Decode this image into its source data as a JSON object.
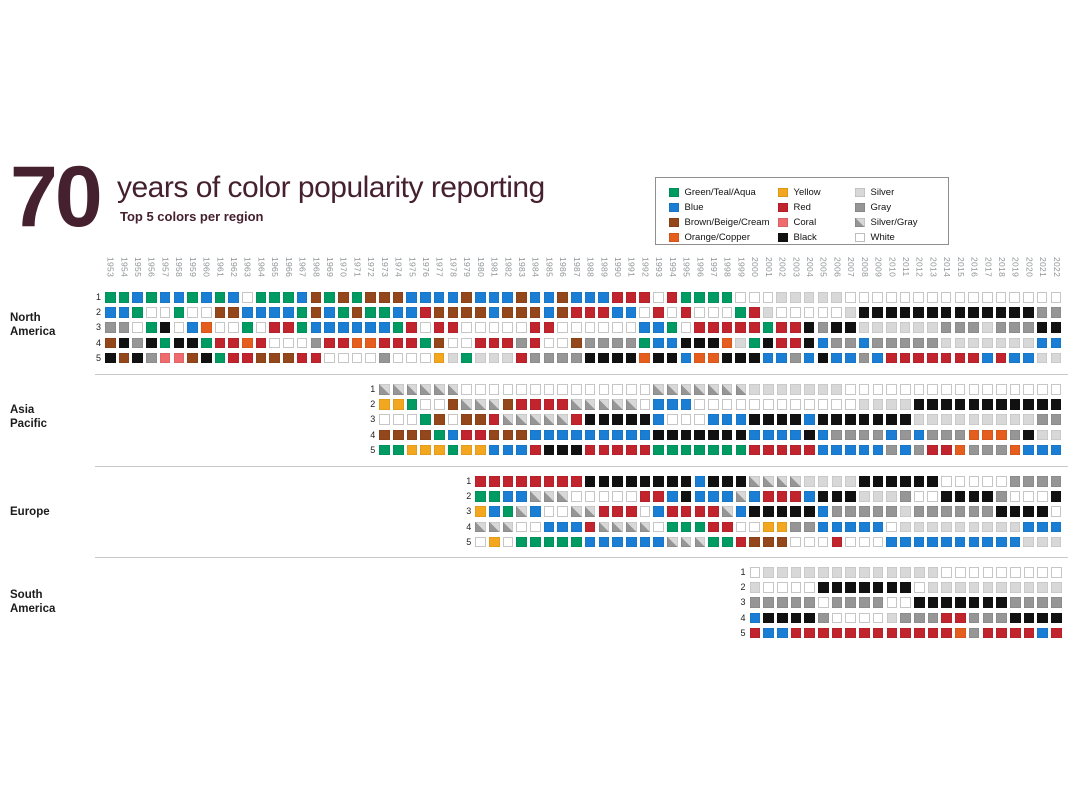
{
  "header": {
    "number": "70",
    "title": "years of color popularity reporting",
    "subtitle": "Top 5 colors per region"
  },
  "colors": {
    "title_text": "#45202f",
    "year_label": "#8e9396",
    "region_label": "#1b1b1b",
    "separator": "#c9c9c9"
  },
  "chart_data": {
    "type": "heatmap",
    "title": "70 years of color popularity reporting",
    "subtitle": "Top 5 colors per region",
    "x_axis": {
      "label": "year",
      "start": 1953,
      "end": 2022
    },
    "years": [
      1953,
      1954,
      1955,
      1956,
      1957,
      1958,
      1959,
      1960,
      1961,
      1962,
      1963,
      1964,
      1965,
      1966,
      1967,
      1968,
      1969,
      1970,
      1971,
      1972,
      1973,
      1974,
      1975,
      1976,
      1977,
      1978,
      1979,
      1980,
      1981,
      1982,
      1983,
      1984,
      1985,
      1986,
      1987,
      1988,
      1989,
      1990,
      1991,
      1992,
      1993,
      1994,
      1995,
      1996,
      1997,
      1998,
      1999,
      2000,
      2001,
      2002,
      2003,
      2004,
      2005,
      2006,
      2007,
      2008,
      2009,
      2010,
      2011,
      2012,
      2013,
      2014,
      2015,
      2016,
      2017,
      2018,
      2019,
      2020,
      2021,
      2022
    ],
    "rank_rows": [
      1,
      2,
      3,
      4,
      5
    ],
    "legend": [
      {
        "code": "G",
        "label": "Green/Teal/Aqua",
        "color": "#009b63"
      },
      {
        "code": "B",
        "label": "Blue",
        "color": "#1a7fd4"
      },
      {
        "code": "N",
        "label": "Brown/Beige/Cream",
        "color": "#93471b"
      },
      {
        "code": "O",
        "label": "Orange/Copper",
        "color": "#e55e1e"
      },
      {
        "code": "Y",
        "label": "Yellow",
        "color": "#f2a71e"
      },
      {
        "code": "R",
        "label": "Red",
        "color": "#c2242e"
      },
      {
        "code": "C",
        "label": "Coral",
        "color": "#ee6c6e"
      },
      {
        "code": "K",
        "label": "Black",
        "color": "#111111"
      },
      {
        "code": "S",
        "label": "Silver",
        "color": "#d8d8d8"
      },
      {
        "code": "A",
        "label": "Gray",
        "color": "#969696"
      },
      {
        "code": "D",
        "label": "Silver/Gray",
        "color": "diagonal"
      },
      {
        "code": "W",
        "label": "White",
        "color": "#ffffff"
      }
    ],
    "palette": {
      "G": "#009b63",
      "B": "#1a7fd4",
      "N": "#93471b",
      "O": "#e55e1e",
      "Y": "#f2a71e",
      "R": "#c2242e",
      "C": "#ee6c6e",
      "K": "#111111",
      "S": "#d8d8d8",
      "A": "#969696",
      "W": "#ffffff"
    },
    "regions": [
      {
        "name": "North America",
        "start_year": 1953,
        "rows": [
          "GGBGBBGBGBWGGGBNGNGNNNBBBBNBBBNBBNBBBRRRWRGGGGWWWSSSSSWWWWWWWWWWWWWWWW",
          "BBGWWGWWNNBBBBGNBGNGGBBRNNNNBNNNBNRRRBBWRWRWWWGRSWWWWWSKKKKKKKKKKKKKAA",
          "AAWGKWBOWWGWRRGBBBBBBGRWRRWWWWWRRWWWWWWBBGWRRRRRGRRKAKKSSSSSSAAASAAAKK",
          "NKAKGKKGRRORWWWARROORRRGNWWRRRARWWNAAAAGBBKKKOSGKRRKBAABAAAAASSSSSSSBB",
          "KNKACCNKGRRNNNRRWWWWAWWWYSGSSSRAAAAKKKKOKKBOOKKKBBABKBBABRRRRRRRBRBBSS"
        ]
      },
      {
        "name": "Asia Pacific",
        "start_year": 1973,
        "rows": [
          "DDDDDDWWWWWWWWWWWWWWDDDDDDDSSSSSSSWWWWWWWWWWWWWWWW",
          "YYGWWNDDDNRRRRDDDDDWBBBWWWWWWWWWWWWSSSSKKKKKKKKKKK",
          "WWWGNWNNRDDDDDRKKKKKBWWWBBBKKKKBKKKKKKKSSSSSSSSSAA",
          "NNNNGBRRNNNBBBBBBBBBKKKKKKKBBBBKBAAAABABAAAOOOAKSS",
          "GGYYYGYYBBBRKKKRRRRRGGGGGGGRRRRRBBBBBABARROAAAOBBB"
        ]
      },
      {
        "name": "Europe",
        "start_year": 1980,
        "rows": [
          "RRRRRRRRKKKKKKKKBKKKDDDDSSSSKKKKKKWWWWWAAAA",
          "GGBBDDDWWWWWRRBKBBBDBRRRBKKKSSSAWWKKKKAWWWK",
          "YBGDBWWDDRRRWBRRRRDBKKKKKBAAAAASAAAAAAKKKKW",
          "DDDWWBBBRDDDDWGGGRRWWYYAABBBBBWSSSSSSSSSBBB",
          "WYWGGGGGBBBBBBDDDGGRNNNWWWRWWWBBBBBBBBBBSSS"
        ]
      },
      {
        "name": "South America",
        "start_year": 2000,
        "rows": [
          "WSSSSSSSSSSSSSWWWWWWWWW",
          "SWWWWKKKKKKKWSSSSSSSSSS",
          "AAAAAWAAAAWWKKKKKKKAAAA",
          "BKKKKAWWWWSAAARRAAAKKKK",
          "RBBRRRRRRRRRRRROARRRRBR"
        ]
      }
    ]
  }
}
